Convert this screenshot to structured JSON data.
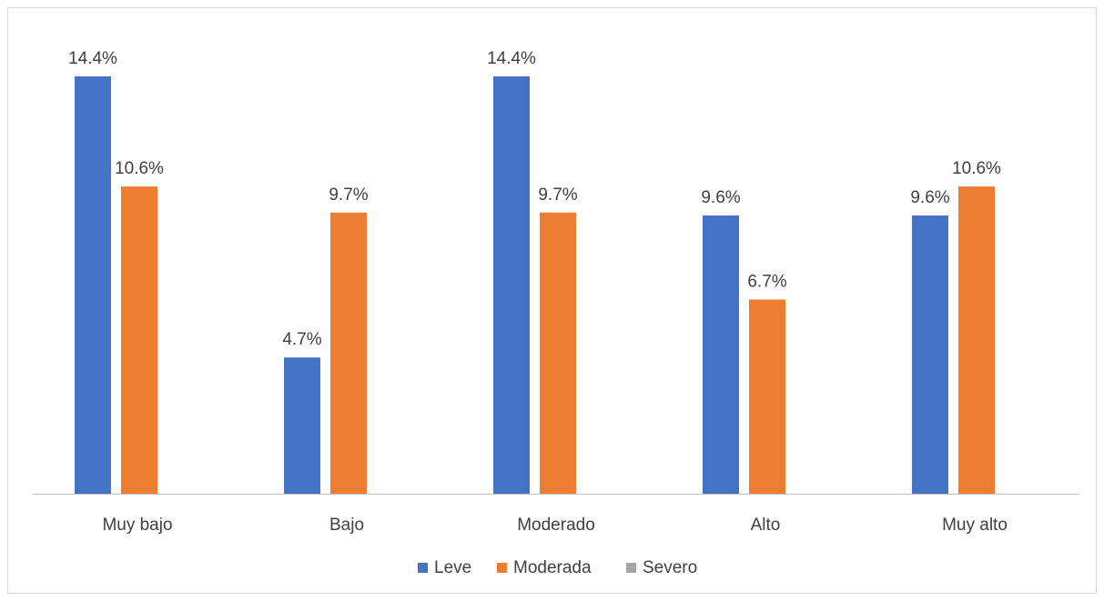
{
  "chart_data": {
    "type": "bar",
    "title": "",
    "xlabel": "",
    "ylabel": "",
    "categories": [
      "Muy bajo",
      "Bajo",
      "Moderado",
      "Alto",
      "Muy alto"
    ],
    "series": [
      {
        "name": "Leve",
        "color": "#4472C4",
        "values": [
          14.4,
          4.7,
          14.4,
          9.6,
          9.6
        ],
        "labels": [
          "14.4%",
          "4.7%",
          "14.4%",
          "9.6%",
          "9.6%"
        ]
      },
      {
        "name": "Moderada",
        "color": "#ED7D31",
        "values": [
          10.6,
          9.7,
          9.7,
          6.7,
          10.6
        ],
        "labels": [
          "10.6%",
          "9.7%",
          "9.7%",
          "6.7%",
          "10.6%"
        ]
      },
      {
        "name": "Severo",
        "color": "#A5A5A5",
        "values": [
          0,
          0,
          0,
          0,
          0
        ],
        "labels": []
      }
    ],
    "ylim": [
      0,
      16
    ],
    "grid": false,
    "y_axis_visible": false,
    "legend_position": "bottom"
  }
}
